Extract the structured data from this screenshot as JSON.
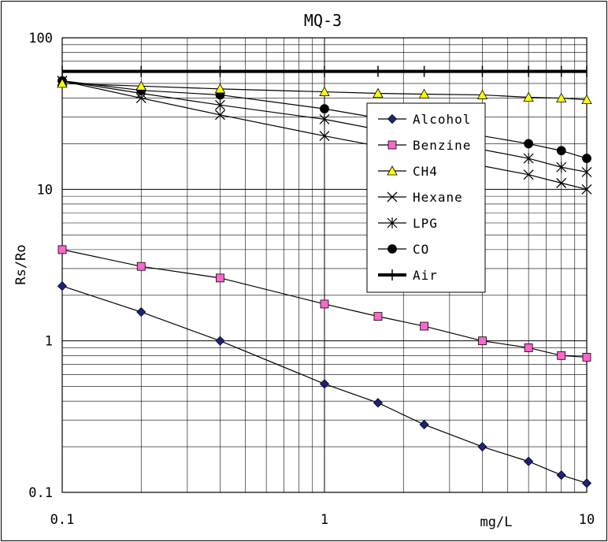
{
  "chart_data": {
    "type": "line",
    "title": "MQ-3",
    "xlabel": "mg/L",
    "ylabel": "Rs/Ro",
    "xscale": "log",
    "yscale": "log",
    "xlim": [
      0.1,
      10
    ],
    "ylim": [
      0.1,
      100
    ],
    "grid": true,
    "legend_position": "right",
    "x_ticks": [
      {
        "value": 0.1,
        "label": "0.1"
      },
      {
        "value": 1,
        "label": "1"
      },
      {
        "value": 10,
        "label": "10"
      }
    ],
    "y_ticks": [
      {
        "value": 0.1,
        "label": "0.1"
      },
      {
        "value": 1,
        "label": "1"
      },
      {
        "value": 10,
        "label": "10"
      },
      {
        "value": 100,
        "label": "100"
      }
    ],
    "series": [
      {
        "name": "Alcohol",
        "marker": "diamond",
        "color": "#1a237e",
        "x": [
          0.1,
          0.2,
          0.4,
          1,
          1.6,
          2.4,
          4,
          6,
          8,
          10
        ],
        "y": [
          2.3,
          1.55,
          1.0,
          0.52,
          0.39,
          0.28,
          0.2,
          0.16,
          0.13,
          0.115
        ]
      },
      {
        "name": "Benzine",
        "marker": "square",
        "color": "#ff66cc",
        "x": [
          0.1,
          0.2,
          0.4,
          1,
          1.6,
          2.4,
          4,
          6,
          8,
          10
        ],
        "y": [
          4.0,
          3.1,
          2.6,
          1.75,
          1.45,
          1.25,
          1.0,
          0.9,
          0.8,
          0.78
        ]
      },
      {
        "name": "CH4",
        "marker": "triangle",
        "color": "#ffff00",
        "x": [
          0.1,
          0.2,
          0.4,
          1,
          1.6,
          2.4,
          4,
          6,
          8,
          10
        ],
        "y": [
          50,
          48,
          46,
          44,
          43,
          42.5,
          42,
          40.5,
          40,
          39
        ]
      },
      {
        "name": "Hexane",
        "marker": "x",
        "color": "#000000",
        "x": [
          0.1,
          0.2,
          0.4,
          1,
          6,
          8,
          10
        ],
        "y": [
          52,
          40,
          31,
          22.5,
          12.5,
          11,
          10
        ]
      },
      {
        "name": "LPG",
        "marker": "asterisk",
        "color": "#000000",
        "x": [
          0.1,
          0.2,
          0.4,
          1,
          6,
          8,
          10
        ],
        "y": [
          52,
          43,
          36,
          29,
          16,
          14,
          13
        ]
      },
      {
        "name": "CO",
        "marker": "circle",
        "color": "#000000",
        "x": [
          0.1,
          0.2,
          0.4,
          1,
          6,
          8,
          10
        ],
        "y": [
          52,
          45,
          42,
          34,
          20,
          18,
          16
        ]
      },
      {
        "name": "Air",
        "marker": "plus",
        "color": "#000000",
        "x": [
          0.1,
          0.2,
          0.4,
          1,
          1.6,
          2.4,
          4,
          6,
          8,
          10
        ],
        "y": [
          60,
          60,
          60,
          60,
          60,
          60,
          60,
          60,
          60,
          60
        ]
      }
    ]
  }
}
